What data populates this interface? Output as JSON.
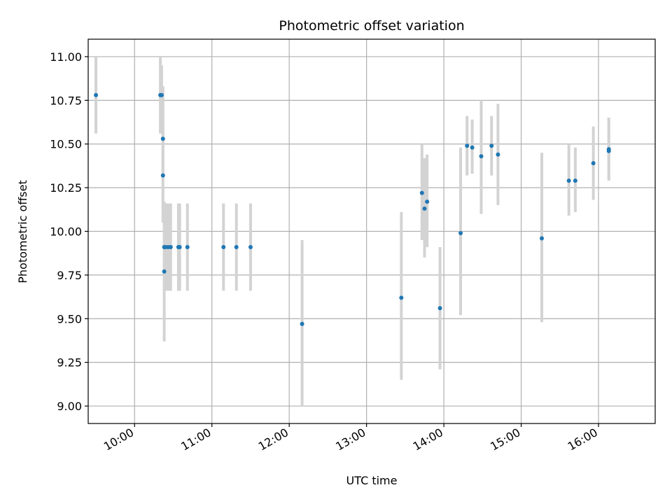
{
  "chart_data": {
    "type": "scatter",
    "title": "Photometric offset variation",
    "xlabel": "UTC time",
    "ylabel": "Photometric offset",
    "grid": true,
    "x_ticks": [
      "10:00",
      "11:00",
      "12:00",
      "13:00",
      "14:00",
      "15:00",
      "16:00"
    ],
    "y_ticks": [
      "9.00",
      "9.25",
      "9.50",
      "9.75",
      "10.00",
      "10.25",
      "10.50",
      "10.75",
      "11.00"
    ],
    "xlim": [
      "09:24",
      "16:44"
    ],
    "ylim": [
      8.9,
      11.1
    ],
    "colors": {
      "point": "#1f77b4",
      "errorbar": "#d3d3d3",
      "grid": "#b0b0b0"
    },
    "points": [
      {
        "x": "09:30",
        "y": 10.78,
        "lo": 10.56,
        "hi": 11.0
      },
      {
        "x": "10:20",
        "y": 10.78,
        "lo": 10.56,
        "hi": 11.0
      },
      {
        "x": "10:21",
        "y": 10.78,
        "lo": 10.6,
        "hi": 10.95
      },
      {
        "x": "10:22",
        "y": 10.53,
        "lo": 10.3,
        "hi": 10.83
      },
      {
        "x": "10:22",
        "y": 10.32,
        "lo": 10.05,
        "hi": 10.6
      },
      {
        "x": "10:23",
        "y": 9.91,
        "lo": 9.66,
        "hi": 10.16
      },
      {
        "x": "10:23",
        "y": 9.77,
        "lo": 9.37,
        "hi": 10.17
      },
      {
        "x": "10:24",
        "y": 9.91,
        "lo": 9.66,
        "hi": 10.16
      },
      {
        "x": "10:26",
        "y": 9.91,
        "lo": 9.66,
        "hi": 10.16
      },
      {
        "x": "10:28",
        "y": 9.91,
        "lo": 9.66,
        "hi": 10.16
      },
      {
        "x": "10:34",
        "y": 9.91,
        "lo": 9.66,
        "hi": 10.16
      },
      {
        "x": "10:35",
        "y": 9.91,
        "lo": 9.66,
        "hi": 10.16
      },
      {
        "x": "10:41",
        "y": 9.91,
        "lo": 9.66,
        "hi": 10.16
      },
      {
        "x": "11:09",
        "y": 9.91,
        "lo": 9.66,
        "hi": 10.16
      },
      {
        "x": "11:19",
        "y": 9.91,
        "lo": 9.66,
        "hi": 10.16
      },
      {
        "x": "11:30",
        "y": 9.91,
        "lo": 9.66,
        "hi": 10.16
      },
      {
        "x": "12:10",
        "y": 9.47,
        "lo": 9.0,
        "hi": 9.95
      },
      {
        "x": "13:27",
        "y": 9.62,
        "lo": 9.15,
        "hi": 10.11
      },
      {
        "x": "13:43",
        "y": 10.22,
        "lo": 9.95,
        "hi": 10.5
      },
      {
        "x": "13:45",
        "y": 10.13,
        "lo": 9.85,
        "hi": 10.42
      },
      {
        "x": "13:47",
        "y": 10.17,
        "lo": 9.91,
        "hi": 10.44
      },
      {
        "x": "13:57",
        "y": 9.56,
        "lo": 9.21,
        "hi": 9.91
      },
      {
        "x": "14:13",
        "y": 9.99,
        "lo": 9.52,
        "hi": 10.48
      },
      {
        "x": "14:18",
        "y": 10.49,
        "lo": 10.32,
        "hi": 10.66
      },
      {
        "x": "14:22",
        "y": 10.48,
        "lo": 10.33,
        "hi": 10.64
      },
      {
        "x": "14:29",
        "y": 10.43,
        "lo": 10.1,
        "hi": 10.75
      },
      {
        "x": "14:37",
        "y": 10.49,
        "lo": 10.32,
        "hi": 10.66
      },
      {
        "x": "14:42",
        "y": 10.44,
        "lo": 10.15,
        "hi": 10.73
      },
      {
        "x": "15:16",
        "y": 9.96,
        "lo": 9.48,
        "hi": 10.45
      },
      {
        "x": "15:37",
        "y": 10.29,
        "lo": 10.09,
        "hi": 10.5
      },
      {
        "x": "15:42",
        "y": 10.29,
        "lo": 10.11,
        "hi": 10.48
      },
      {
        "x": "15:56",
        "y": 10.39,
        "lo": 10.18,
        "hi": 10.6
      },
      {
        "x": "16:08",
        "y": 10.46,
        "lo": 10.29,
        "hi": 10.65
      },
      {
        "x": "16:08",
        "y": 10.47,
        "lo": 10.3,
        "hi": 10.65
      }
    ]
  }
}
